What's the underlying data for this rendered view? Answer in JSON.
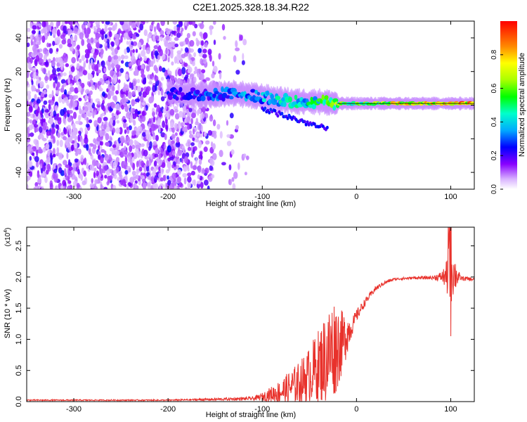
{
  "title": "C2E1.2025.328.18.34.R22",
  "colors": {
    "snr_line": "#e8312b",
    "axis": "#000000"
  },
  "chart_data": [
    {
      "type": "heatmap",
      "title": "C2E1.2025.328.18.34.R22",
      "xlabel": "Height of straight line (km)",
      "ylabel": "Frequency (Hz)",
      "xlim": [
        -350,
        125
      ],
      "ylim": [
        -50,
        50
      ],
      "x_ticks": [
        -300,
        -200,
        -100,
        0,
        100
      ],
      "y_ticks": [
        -40,
        -20,
        0,
        20,
        40
      ],
      "colorbar": {
        "label": "Normalized spectral amplitude",
        "range": [
          0,
          1
        ],
        "ticks": [
          "0.0",
          "0.2",
          "0.4",
          "0.6",
          "0.8"
        ]
      },
      "ridge": {
        "description_points": [
          {
            "x": -200,
            "freq": 7,
            "amp": 0.25
          },
          {
            "x": -160,
            "freq": 6,
            "amp": 0.3
          },
          {
            "x": -130,
            "freq": 7,
            "amp": 0.35
          },
          {
            "x": -100,
            "freq": 5,
            "amp": 0.4
          },
          {
            "x": -80,
            "freq": 3,
            "amp": 0.5
          },
          {
            "x": -60,
            "freq": 2,
            "amp": 0.45
          },
          {
            "x": -40,
            "freq": 2,
            "amp": 0.55
          },
          {
            "x": -20,
            "freq": 1,
            "amp": 0.65
          },
          {
            "x": 0,
            "freq": 1,
            "amp": 0.6
          },
          {
            "x": 40,
            "freq": 1,
            "amp": 0.8
          },
          {
            "x": 80,
            "freq": 1,
            "amp": 0.85
          },
          {
            "x": 100,
            "freq": 1,
            "amp": 0.9
          },
          {
            "x": 125,
            "freq": 1,
            "amp": 0.85
          }
        ],
        "noise_region_x": [
          -350,
          -120
        ]
      }
    },
    {
      "type": "line",
      "xlabel": "Height of straight line (km)",
      "ylabel": "SNR (10 * v/v)",
      "y_multiplier": "(x10",
      "y_multiplier_exp": "4",
      "y_multiplier_close": ")",
      "xlim": [
        -350,
        125
      ],
      "ylim": [
        0,
        2.8
      ],
      "x_ticks": [
        -300,
        -200,
        -100,
        0,
        100
      ],
      "y_ticks": [
        "0.0",
        "0.5",
        "1.0",
        "1.5",
        "2.0",
        "2.5"
      ],
      "envelope": {
        "x": [
          -350,
          -200,
          -150,
          -110,
          -100,
          -80,
          -60,
          -50,
          -40,
          -30,
          -25,
          -20,
          -15,
          -10,
          -5,
          0,
          10,
          20,
          30,
          40,
          60,
          80,
          90,
          95,
          98,
          100,
          102,
          110,
          125
        ],
        "base": [
          0.02,
          0.02,
          0.03,
          0.04,
          0.06,
          0.1,
          0.2,
          0.3,
          0.4,
          0.5,
          0.6,
          0.7,
          0.8,
          1.0,
          1.15,
          1.35,
          1.6,
          1.8,
          1.9,
          1.96,
          1.98,
          1.98,
          1.98,
          1.95,
          1.95,
          1.95,
          1.95,
          1.97,
          1.95
        ],
        "noise": [
          0.01,
          0.01,
          0.02,
          0.03,
          0.06,
          0.2,
          0.35,
          0.45,
          0.6,
          0.8,
          0.85,
          0.7,
          0.5,
          0.35,
          0.15,
          0.1,
          0.06,
          0.04,
          0.03,
          0.02,
          0.02,
          0.03,
          0.08,
          0.2,
          0.6,
          0.8,
          0.4,
          0.04,
          0.03
        ]
      }
    }
  ]
}
